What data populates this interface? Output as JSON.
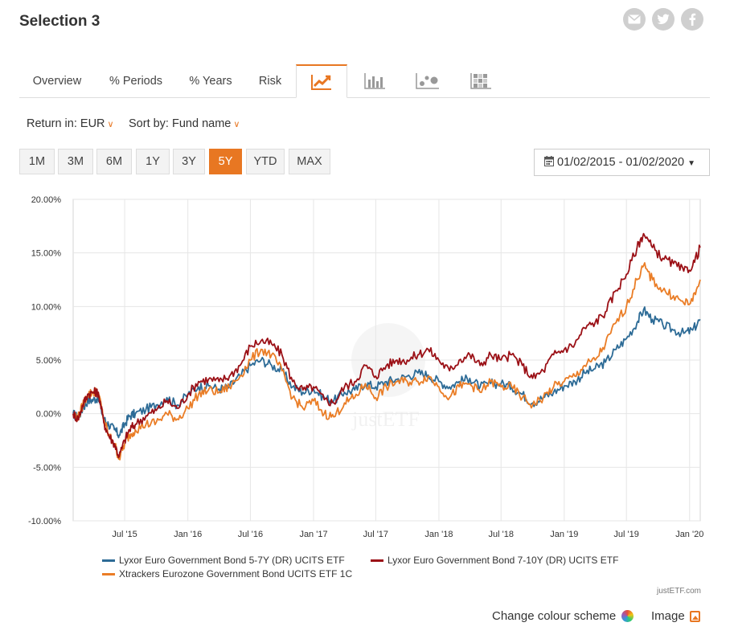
{
  "page": {
    "title": "Selection 3"
  },
  "social": {
    "items": [
      "email-icon",
      "twitter-icon",
      "facebook-icon"
    ]
  },
  "tabs": [
    {
      "label": "Overview"
    },
    {
      "label": "% Periods"
    },
    {
      "label": "% Years"
    },
    {
      "label": "Risk"
    },
    {
      "label": "",
      "icon": "line-chart-icon",
      "active": true
    },
    {
      "label": "",
      "icon": "bar-chart-icon"
    },
    {
      "label": "",
      "icon": "scatter-chart-icon"
    },
    {
      "label": "",
      "icon": "heatmap-icon"
    }
  ],
  "filters": {
    "return_label": "Return in: EUR",
    "sort_label": "Sort by: Fund name"
  },
  "ranges": [
    "1M",
    "3M",
    "6M",
    "1Y",
    "3Y",
    "5Y",
    "YTD",
    "MAX"
  ],
  "active_range": "5Y",
  "datepicker": {
    "label": "01/02/2015 - 01/02/2020",
    "icon": "calendar-icon"
  },
  "colors": {
    "accent": "#e87722",
    "blue": "#2d6b96",
    "red": "#9b1016",
    "orange": "#ea7d26"
  },
  "chart_data": {
    "type": "line",
    "title": "",
    "ylim": [
      -10,
      20
    ],
    "yticks": [
      20,
      15,
      10,
      5,
      0,
      -5,
      -10
    ],
    "ytick_labels": [
      "20.00%",
      "15.00%",
      "10.00%",
      "5.00%",
      "0.00%",
      "-5.00%",
      "-10.00%"
    ],
    "xlim": [
      "2015-02-01",
      "2020-02-01"
    ],
    "xtick_labels": [
      "Jul '15",
      "Jan '16",
      "Jul '16",
      "Jan '17",
      "Jul '17",
      "Jan '18",
      "Jul '18",
      "Jan '19",
      "Jul '19",
      "Jan '20"
    ],
    "xticks": [
      "2015-07-01",
      "2016-01-01",
      "2016-07-01",
      "2017-01-01",
      "2017-07-01",
      "2018-01-01",
      "2018-07-01",
      "2019-01-01",
      "2019-07-01",
      "2020-01-01"
    ],
    "grid": true,
    "legend_position": "bottom",
    "watermark": "justETF",
    "series": [
      {
        "name": "Lyxor Euro Government Bond 5-7Y (DR) UCITS ETF",
        "color": "#2d6b96",
        "points": [
          [
            "2015-02-01",
            0.0
          ],
          [
            "2015-02-15",
            -0.4
          ],
          [
            "2015-03-01",
            0.5
          ],
          [
            "2015-03-15",
            1.2
          ],
          [
            "2015-04-01",
            1.3
          ],
          [
            "2015-04-15",
            1.5
          ],
          [
            "2015-05-01",
            -0.5
          ],
          [
            "2015-05-15",
            -1.0
          ],
          [
            "2015-06-01",
            -1.5
          ],
          [
            "2015-06-15",
            -2.0
          ],
          [
            "2015-07-01",
            -1.0
          ],
          [
            "2015-07-15",
            -0.2
          ],
          [
            "2015-08-01",
            0.0
          ],
          [
            "2015-09-01",
            0.4
          ],
          [
            "2015-10-01",
            0.8
          ],
          [
            "2015-11-01",
            1.5
          ],
          [
            "2015-12-01",
            0.8
          ],
          [
            "2016-01-01",
            1.8
          ],
          [
            "2016-02-01",
            2.5
          ],
          [
            "2016-03-01",
            2.6
          ],
          [
            "2016-04-01",
            2.3
          ],
          [
            "2016-05-01",
            2.5
          ],
          [
            "2016-06-01",
            3.5
          ],
          [
            "2016-07-01",
            4.5
          ],
          [
            "2016-08-01",
            5.0
          ],
          [
            "2016-09-01",
            4.5
          ],
          [
            "2016-10-01",
            4.0
          ],
          [
            "2016-11-01",
            2.5
          ],
          [
            "2016-12-01",
            2.0
          ],
          [
            "2017-01-01",
            2.3
          ],
          [
            "2017-02-01",
            1.5
          ],
          [
            "2017-03-01",
            1.2
          ],
          [
            "2017-04-01",
            2.0
          ],
          [
            "2017-05-01",
            2.2
          ],
          [
            "2017-06-01",
            2.8
          ],
          [
            "2017-07-01",
            2.5
          ],
          [
            "2017-08-01",
            3.0
          ],
          [
            "2017-09-01",
            3.2
          ],
          [
            "2017-10-01",
            3.5
          ],
          [
            "2017-11-01",
            3.8
          ],
          [
            "2017-12-01",
            3.6
          ],
          [
            "2018-01-01",
            3.0
          ],
          [
            "2018-02-01",
            2.5
          ],
          [
            "2018-03-01",
            3.0
          ],
          [
            "2018-04-01",
            3.3
          ],
          [
            "2018-05-01",
            2.5
          ],
          [
            "2018-06-01",
            2.8
          ],
          [
            "2018-07-01",
            2.8
          ],
          [
            "2018-08-01",
            2.5
          ],
          [
            "2018-09-01",
            1.8
          ],
          [
            "2018-10-01",
            1.0
          ],
          [
            "2018-11-01",
            1.5
          ],
          [
            "2018-12-01",
            2.0
          ],
          [
            "2019-01-01",
            2.6
          ],
          [
            "2019-02-01",
            3.0
          ],
          [
            "2019-03-01",
            3.8
          ],
          [
            "2019-04-01",
            4.2
          ],
          [
            "2019-05-01",
            4.8
          ],
          [
            "2019-06-01",
            6.0
          ],
          [
            "2019-07-01",
            7.0
          ],
          [
            "2019-08-01",
            8.5
          ],
          [
            "2019-08-20",
            9.7
          ],
          [
            "2019-09-15",
            8.8
          ],
          [
            "2019-10-15",
            8.3
          ],
          [
            "2019-11-15",
            7.8
          ],
          [
            "2019-12-15",
            7.5
          ],
          [
            "2020-01-10",
            7.8
          ],
          [
            "2020-02-01",
            8.8
          ]
        ]
      },
      {
        "name": "Lyxor Euro Government Bond 7-10Y (DR) UCITS ETF",
        "color": "#9b1016",
        "points": [
          [
            "2015-02-01",
            0.0
          ],
          [
            "2015-02-15",
            -0.5
          ],
          [
            "2015-03-01",
            0.8
          ],
          [
            "2015-03-15",
            1.8
          ],
          [
            "2015-04-01",
            2.0
          ],
          [
            "2015-04-15",
            2.0
          ],
          [
            "2015-05-01",
            -0.8
          ],
          [
            "2015-05-15",
            -2.0
          ],
          [
            "2015-06-01",
            -2.8
          ],
          [
            "2015-06-15",
            -4.0
          ],
          [
            "2015-07-01",
            -2.5
          ],
          [
            "2015-07-15",
            -1.5
          ],
          [
            "2015-08-01",
            -1.0
          ],
          [
            "2015-09-01",
            -0.2
          ],
          [
            "2015-10-01",
            0.3
          ],
          [
            "2015-11-01",
            1.2
          ],
          [
            "2015-12-01",
            0.5
          ],
          [
            "2016-01-01",
            1.8
          ],
          [
            "2016-02-01",
            3.0
          ],
          [
            "2016-03-01",
            3.2
          ],
          [
            "2016-04-01",
            3.0
          ],
          [
            "2016-05-01",
            3.5
          ],
          [
            "2016-06-01",
            4.5
          ],
          [
            "2016-07-01",
            6.3
          ],
          [
            "2016-08-01",
            6.8
          ],
          [
            "2016-09-01",
            6.5
          ],
          [
            "2016-10-01",
            5.5
          ],
          [
            "2016-11-01",
            3.0
          ],
          [
            "2016-12-01",
            2.2
          ],
          [
            "2017-01-01",
            2.5
          ],
          [
            "2017-02-01",
            1.3
          ],
          [
            "2017-03-01",
            1.0
          ],
          [
            "2017-04-01",
            2.5
          ],
          [
            "2017-05-01",
            3.0
          ],
          [
            "2017-06-01",
            4.5
          ],
          [
            "2017-07-01",
            3.5
          ],
          [
            "2017-08-01",
            4.5
          ],
          [
            "2017-09-01",
            5.0
          ],
          [
            "2017-10-01",
            5.0
          ],
          [
            "2017-11-01",
            5.5
          ],
          [
            "2017-12-01",
            6.0
          ],
          [
            "2018-01-01",
            5.0
          ],
          [
            "2018-02-01",
            4.0
          ],
          [
            "2018-03-01",
            5.0
          ],
          [
            "2018-04-01",
            5.5
          ],
          [
            "2018-05-01",
            4.5
          ],
          [
            "2018-06-01",
            5.5
          ],
          [
            "2018-07-01",
            5.0
          ],
          [
            "2018-08-01",
            5.5
          ],
          [
            "2018-09-01",
            4.5
          ],
          [
            "2018-10-01",
            3.3
          ],
          [
            "2018-11-01",
            4.0
          ],
          [
            "2018-12-01",
            5.5
          ],
          [
            "2019-01-01",
            6.0
          ],
          [
            "2019-02-01",
            6.5
          ],
          [
            "2019-03-01",
            8.0
          ],
          [
            "2019-04-01",
            8.5
          ],
          [
            "2019-05-01",
            9.5
          ],
          [
            "2019-06-01",
            11.5
          ],
          [
            "2019-07-01",
            13.0
          ],
          [
            "2019-08-01",
            15.5
          ],
          [
            "2019-08-20",
            16.8
          ],
          [
            "2019-09-15",
            15.5
          ],
          [
            "2019-10-15",
            14.5
          ],
          [
            "2019-11-15",
            14.0
          ],
          [
            "2019-12-15",
            13.3
          ],
          [
            "2020-01-10",
            13.8
          ],
          [
            "2020-02-01",
            15.5
          ]
        ]
      },
      {
        "name": "Xtrackers Eurozone Government Bond UCITS ETF 1C",
        "color": "#ea7d26",
        "points": [
          [
            "2015-02-01",
            0.0
          ],
          [
            "2015-02-15",
            -0.4
          ],
          [
            "2015-03-01",
            0.8
          ],
          [
            "2015-03-15",
            1.8
          ],
          [
            "2015-04-01",
            2.0
          ],
          [
            "2015-04-15",
            2.0
          ],
          [
            "2015-05-01",
            -0.5
          ],
          [
            "2015-05-15",
            -2.0
          ],
          [
            "2015-06-01",
            -2.8
          ],
          [
            "2015-06-15",
            -4.2
          ],
          [
            "2015-07-01",
            -2.8
          ],
          [
            "2015-07-15",
            -2.0
          ],
          [
            "2015-08-01",
            -1.5
          ],
          [
            "2015-09-01",
            -1.0
          ],
          [
            "2015-10-01",
            -0.8
          ],
          [
            "2015-11-01",
            0.0
          ],
          [
            "2015-12-01",
            -0.5
          ],
          [
            "2016-01-01",
            0.5
          ],
          [
            "2016-02-01",
            1.8
          ],
          [
            "2016-03-01",
            2.2
          ],
          [
            "2016-04-01",
            2.0
          ],
          [
            "2016-05-01",
            2.5
          ],
          [
            "2016-06-01",
            3.5
          ],
          [
            "2016-07-01",
            5.0
          ],
          [
            "2016-08-01",
            6.0
          ],
          [
            "2016-09-01",
            5.5
          ],
          [
            "2016-10-01",
            4.0
          ],
          [
            "2016-11-01",
            1.5
          ],
          [
            "2016-12-01",
            0.5
          ],
          [
            "2017-01-01",
            1.2
          ],
          [
            "2017-02-01",
            0.0
          ],
          [
            "2017-03-01",
            -0.3
          ],
          [
            "2017-04-01",
            1.0
          ],
          [
            "2017-05-01",
            1.5
          ],
          [
            "2017-06-01",
            2.8
          ],
          [
            "2017-07-01",
            1.5
          ],
          [
            "2017-08-01",
            2.5
          ],
          [
            "2017-09-01",
            3.0
          ],
          [
            "2017-10-01",
            3.0
          ],
          [
            "2017-11-01",
            3.0
          ],
          [
            "2017-12-01",
            3.5
          ],
          [
            "2018-01-01",
            2.5
          ],
          [
            "2018-02-01",
            1.5
          ],
          [
            "2018-03-01",
            2.5
          ],
          [
            "2018-04-01",
            2.8
          ],
          [
            "2018-05-01",
            2.0
          ],
          [
            "2018-06-01",
            3.0
          ],
          [
            "2018-07-01",
            2.5
          ],
          [
            "2018-08-01",
            2.5
          ],
          [
            "2018-09-01",
            1.5
          ],
          [
            "2018-10-01",
            0.8
          ],
          [
            "2018-11-01",
            1.5
          ],
          [
            "2018-12-01",
            2.5
          ],
          [
            "2019-01-01",
            3.0
          ],
          [
            "2019-02-01",
            3.5
          ],
          [
            "2019-03-01",
            4.5
          ],
          [
            "2019-04-01",
            5.0
          ],
          [
            "2019-05-01",
            6.5
          ],
          [
            "2019-06-01",
            8.5
          ],
          [
            "2019-07-01",
            10.0
          ],
          [
            "2019-08-01",
            12.5
          ],
          [
            "2019-08-20",
            13.8
          ],
          [
            "2019-09-15",
            12.5
          ],
          [
            "2019-10-15",
            11.5
          ],
          [
            "2019-11-15",
            11.0
          ],
          [
            "2019-12-15",
            10.3
          ],
          [
            "2020-01-10",
            10.5
          ],
          [
            "2020-02-01",
            12.5
          ]
        ]
      }
    ]
  },
  "legend": {
    "blue": "Lyxor Euro Government Bond 5-7Y (DR) UCITS ETF",
    "red": "Lyxor Euro Government Bond 7-10Y (DR) UCITS ETF",
    "orange": "Xtrackers Eurozone Government Bond UCITS ETF 1C"
  },
  "credit": "justETF.com",
  "footer": {
    "colour_scheme": "Change colour scheme",
    "image": "Image"
  }
}
